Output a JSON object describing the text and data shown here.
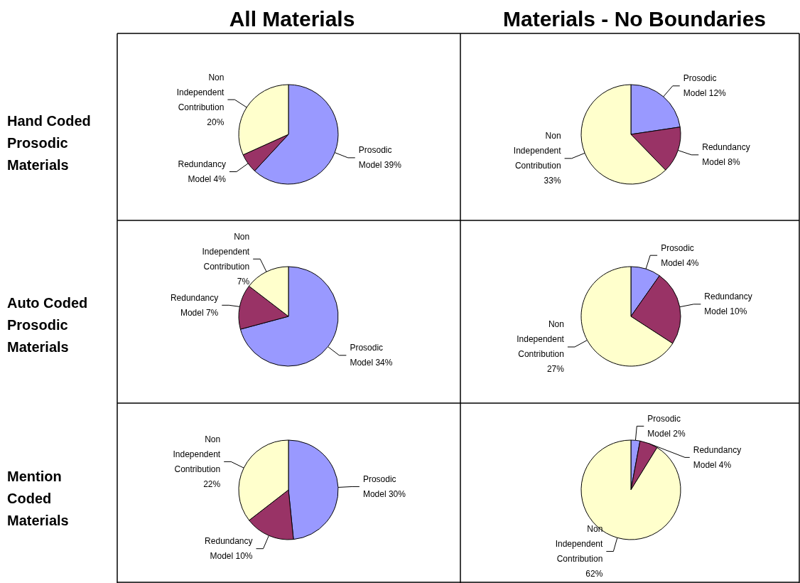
{
  "chart_data": [
    {
      "type": "pie",
      "title": "All Materials",
      "ylabel": "Hand Coded Prosodic Materials",
      "categories": [
        "Prosodic Model",
        "Redundancy Model",
        "Non Independent Contribution"
      ],
      "values": [
        39,
        4,
        20
      ],
      "value_labels": [
        "39%",
        "4%",
        "20%"
      ],
      "colors": [
        "#9999ff",
        "#993366",
        "#ffffcc"
      ]
    },
    {
      "type": "pie",
      "title": "Materials - No Boundaries",
      "categories": [
        "Prosodic Model",
        "Redundancy Model",
        "Non Independent Contribution"
      ],
      "values": [
        12,
        8,
        33
      ],
      "value_labels": [
        "12%",
        "8%",
        "33%"
      ],
      "colors": [
        "#9999ff",
        "#993366",
        "#ffffcc"
      ]
    },
    {
      "type": "pie",
      "ylabel": "Auto Coded Prosodic Materials",
      "categories": [
        "Prosodic Model",
        "Redundancy Model",
        "Non Independent Contribution"
      ],
      "values": [
        34,
        7,
        7
      ],
      "value_labels": [
        "34%",
        "7%",
        "7%"
      ],
      "colors": [
        "#9999ff",
        "#993366",
        "#ffffcc"
      ]
    },
    {
      "type": "pie",
      "categories": [
        "Prosodic Model",
        "Redundancy Model",
        "Non Independent Contribution"
      ],
      "values": [
        4,
        10,
        27
      ],
      "value_labels": [
        "4%",
        "10%",
        "27%"
      ],
      "colors": [
        "#9999ff",
        "#993366",
        "#ffffcc"
      ]
    },
    {
      "type": "pie",
      "ylabel": "Mention Coded Materials",
      "categories": [
        "Prosodic Model",
        "Redundancy Model",
        "Non Independent Contribution"
      ],
      "values": [
        30,
        10,
        22
      ],
      "value_labels": [
        "30%",
        "10%",
        "22%"
      ],
      "colors": [
        "#9999ff",
        "#993366",
        "#ffffcc"
      ]
    },
    {
      "type": "pie",
      "categories": [
        "Prosodic Model",
        "Redundancy Model",
        "Non Independent Contribution"
      ],
      "values": [
        2,
        4,
        62
      ],
      "value_labels": [
        "2%",
        "4%",
        "62%"
      ],
      "colors": [
        "#9999ff",
        "#993366",
        "#ffffcc"
      ]
    }
  ]
}
